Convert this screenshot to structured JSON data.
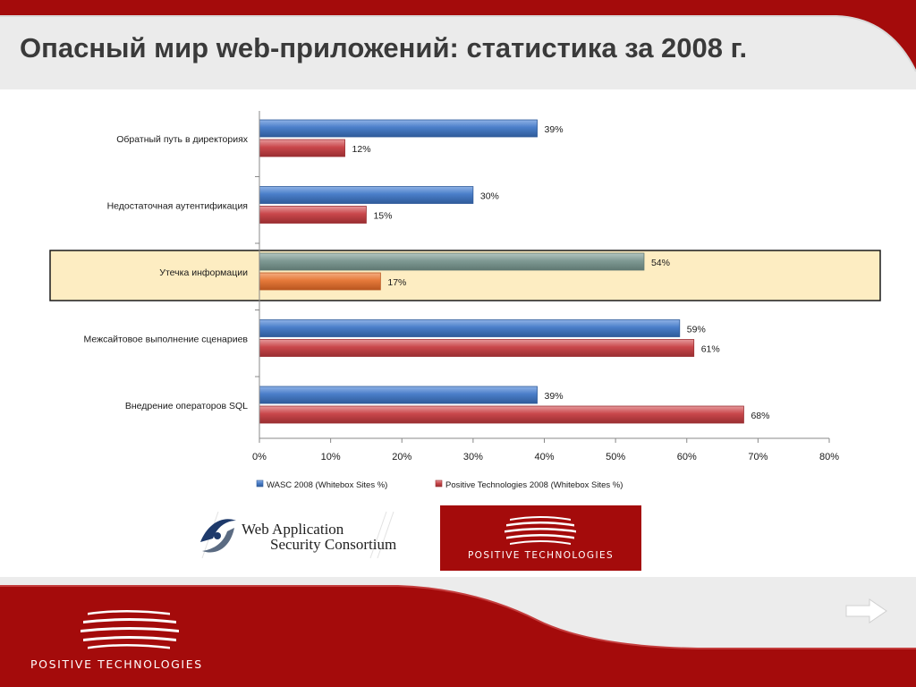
{
  "slide": {
    "title": "Опасный мир web-приложений: статистика за 2008 г."
  },
  "colors": {
    "brand_red": "#a40b0b",
    "wasc_bar": "#4a7ec9",
    "pt_bar": "#c9474b",
    "highlight_wasc_bar": "#7f9a94",
    "highlight_pt_bar": "#e5793a",
    "highlight_fill": "#fdedc2"
  },
  "chart_data": {
    "type": "bar",
    "orientation": "horizontal",
    "categories": [
      "Обратный путь в директориях",
      "Недостаточная аутентификация",
      "Утечка информации",
      "Межсайтовое выполнение сценариев",
      "Внедрение операторов SQL"
    ],
    "series": [
      {
        "name": "WASC 2008 (Whitebox Sites %)",
        "values": [
          39,
          30,
          54,
          59,
          39
        ],
        "labels": [
          "39%",
          "30%",
          "54%",
          "59%",
          "39%"
        ]
      },
      {
        "name": "Positive Technologies 2008 (Whitebox Sites %)",
        "values": [
          12,
          15,
          17,
          61,
          68
        ],
        "labels": [
          "12%",
          "15%",
          "17%",
          "61%",
          "68%"
        ]
      }
    ],
    "xlim": [
      0,
      80
    ],
    "ticks": [
      "0%",
      "10%",
      "20%",
      "30%",
      "40%",
      "50%",
      "60%",
      "70%",
      "80%"
    ],
    "highlighted_category": "Утечка информации",
    "legend_position": "bottom",
    "grid": false
  },
  "logos": {
    "wasc_line1": "Web Application",
    "wasc_line2": "Security Consortium",
    "pt_label": "POSITIVE  TECHNOLOGIES"
  },
  "footer": {
    "brand_label": "POSITIVE  TECHNOLOGIES",
    "next_icon": "arrow-right-icon"
  }
}
